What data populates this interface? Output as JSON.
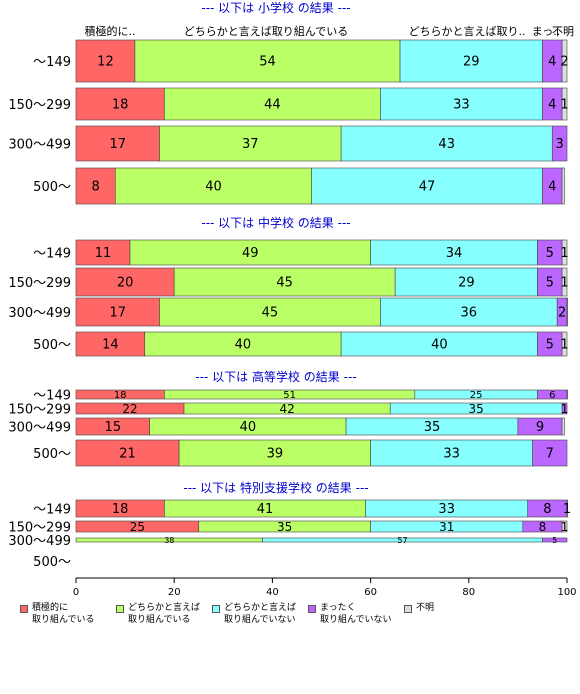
{
  "chart_data": {
    "type": "bar",
    "orientation": "horizontal",
    "stacked": true,
    "xlim": [
      0,
      100
    ],
    "x_ticks": [
      "0",
      "20",
      "40",
      "60",
      "80",
      "100"
    ],
    "header_labels": [
      "積極的に..",
      "どちらかと言えば取り組んでいる",
      "どちらかと言えば取り..",
      "まっ..",
      "不明"
    ],
    "series_colors": [
      "#ff6666",
      "#bbff66",
      "#88ffff",
      "#bb66ff",
      "#dddddd"
    ],
    "legend": [
      {
        "label": "積極的に\n取り組んでいる",
        "color": "#ff6666"
      },
      {
        "label": "どちらかと言えば\n取り組んでいる",
        "color": "#bbff66"
      },
      {
        "label": "どちらかと言えば\n取り組んでいない",
        "color": "#88ffff"
      },
      {
        "label": "まったく\n取り組んでいない",
        "color": "#bb66ff"
      },
      {
        "label": "不明",
        "color": "#dddddd"
      }
    ],
    "panels": [
      {
        "title": "--- 以下は 小学校 の結果 ---",
        "rows": [
          {
            "label": "〜149",
            "values": [
              12,
              54,
              29,
              4,
              2
            ],
            "labels": [
              "12",
              "54",
              "29",
              "4",
              "2"
            ]
          },
          {
            "label": "150〜299",
            "values": [
              18,
              44,
              33,
              4,
              1
            ],
            "labels": [
              "18",
              "44",
              "33",
              "4",
              "1"
            ]
          },
          {
            "label": "300〜499",
            "values": [
              17,
              37,
              43,
              3,
              0
            ],
            "labels": [
              "17",
              "37",
              "43",
              "3",
              ""
            ]
          },
          {
            "label": "500〜",
            "values": [
              8,
              40,
              47,
              4,
              0.5
            ],
            "labels": [
              "8",
              "40",
              "47",
              "4",
              ""
            ]
          }
        ]
      },
      {
        "title": "--- 以下は 中学校 の結果 ---",
        "rows": [
          {
            "label": "〜149",
            "values": [
              11,
              49,
              34,
              5,
              1
            ],
            "labels": [
              "11",
              "49",
              "34",
              "5",
              "1"
            ]
          },
          {
            "label": "150〜299",
            "values": [
              20,
              45,
              29,
              5,
              1
            ],
            "labels": [
              "20",
              "45",
              "29",
              "5",
              "1"
            ]
          },
          {
            "label": "300〜499",
            "values": [
              17,
              45,
              36,
              2,
              1
            ],
            "labels": [
              "17",
              "45",
              "36",
              "2",
              ""
            ]
          },
          {
            "label": "500〜",
            "values": [
              14,
              40,
              40,
              5,
              1
            ],
            "labels": [
              "14",
              "40",
              "40",
              "5",
              "1"
            ]
          }
        ]
      },
      {
        "title": "--- 以下は 高等学校 の結果 ---",
        "rows": [
          {
            "label": "〜149",
            "values": [
              18,
              51,
              25,
              6,
              0.5
            ],
            "labels": [
              "18",
              "51",
              "25",
              "6",
              ""
            ]
          },
          {
            "label": "150〜299",
            "values": [
              22,
              42,
              35,
              1,
              0
            ],
            "labels": [
              "22",
              "42",
              "35",
              "1",
              ""
            ]
          },
          {
            "label": "300〜499",
            "values": [
              15,
              40,
              35,
              9,
              0.5
            ],
            "labels": [
              "15",
              "40",
              "35",
              "9",
              ""
            ]
          },
          {
            "label": "500〜",
            "values": [
              21,
              39,
              33,
              7,
              0
            ],
            "labels": [
              "21",
              "39",
              "33",
              "7",
              ""
            ]
          }
        ]
      },
      {
        "title": "--- 以下は 特別支援学校 の結果 ---",
        "rows": [
          {
            "label": "〜149",
            "values": [
              18,
              41,
              33,
              8,
              1
            ],
            "labels": [
              "18",
              "41",
              "33",
              "8",
              "1"
            ]
          },
          {
            "label": "150〜299",
            "values": [
              25,
              35,
              31,
              8,
              1
            ],
            "labels": [
              "25",
              "35",
              "31",
              "8",
              "1"
            ]
          },
          {
            "label": "300〜499",
            "values": [
              0,
              38,
              57,
              5,
              0
            ],
            "labels": [
              "",
              "38",
              "57",
              "5",
              ""
            ]
          },
          {
            "label": "500〜",
            "values": [],
            "labels": []
          }
        ]
      }
    ]
  }
}
